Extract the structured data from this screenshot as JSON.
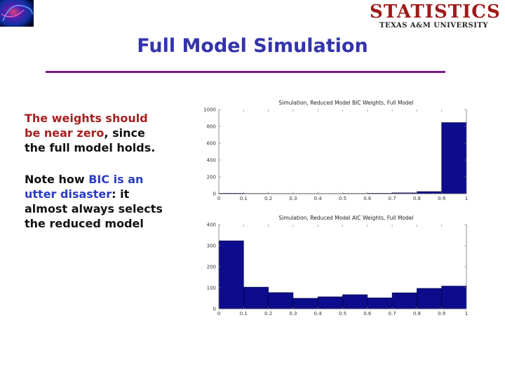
{
  "slide": {
    "title": "Full Model Simulation",
    "logo_main": "STATISTICS",
    "logo_sub": "TEXAS A&M UNIVERSITY",
    "para1": {
      "part1": "The weights should be near zero",
      "part2": ", since the full model holds."
    },
    "para2": {
      "part1": "Note how ",
      "part2": "BIC is an utter disaster",
      "part3": ": it almost always selects the reduced model"
    }
  },
  "colors": {
    "bar": "#0c0c8c",
    "title": "#3333aa",
    "rule": "#7a1a8a"
  },
  "chart_data": [
    {
      "type": "bar",
      "title": "Simulation, Reduced Model BIC Weights, Full Model",
      "xlabel": "",
      "ylabel": "",
      "x": [
        0.05,
        0.15,
        0.25,
        0.35,
        0.45,
        0.55,
        0.65,
        0.75,
        0.85,
        0.95
      ],
      "values": [
        5,
        3,
        2,
        2,
        2,
        3,
        5,
        10,
        25,
        845
      ],
      "xlim": [
        0,
        1
      ],
      "ylim": [
        0,
        1000
      ],
      "xticks": [
        "0",
        "0.1",
        "0.2",
        "0.3",
        "0.4",
        "0.5",
        "0.6",
        "0.7",
        "0.8",
        "0.9",
        "1"
      ],
      "yticks": [
        "0",
        "200",
        "400",
        "600",
        "800",
        "1000"
      ],
      "grid": false
    },
    {
      "type": "bar",
      "title": "Simulation, Reduced Model AIC Weights, Full Model",
      "xlabel": "",
      "ylabel": "",
      "x": [
        0.05,
        0.15,
        0.25,
        0.35,
        0.45,
        0.55,
        0.65,
        0.75,
        0.85,
        0.95
      ],
      "values": [
        323,
        103,
        77,
        50,
        57,
        67,
        52,
        76,
        97,
        108
      ],
      "xlim": [
        0,
        1
      ],
      "ylim": [
        0,
        400
      ],
      "xticks": [
        "0",
        "0.1",
        "0.2",
        "0.3",
        "0.4",
        "0.5",
        "0.6",
        "0.7",
        "0.8",
        "0.9",
        "1"
      ],
      "yticks": [
        "0",
        "100",
        "200",
        "300",
        "400"
      ],
      "grid": false
    }
  ]
}
